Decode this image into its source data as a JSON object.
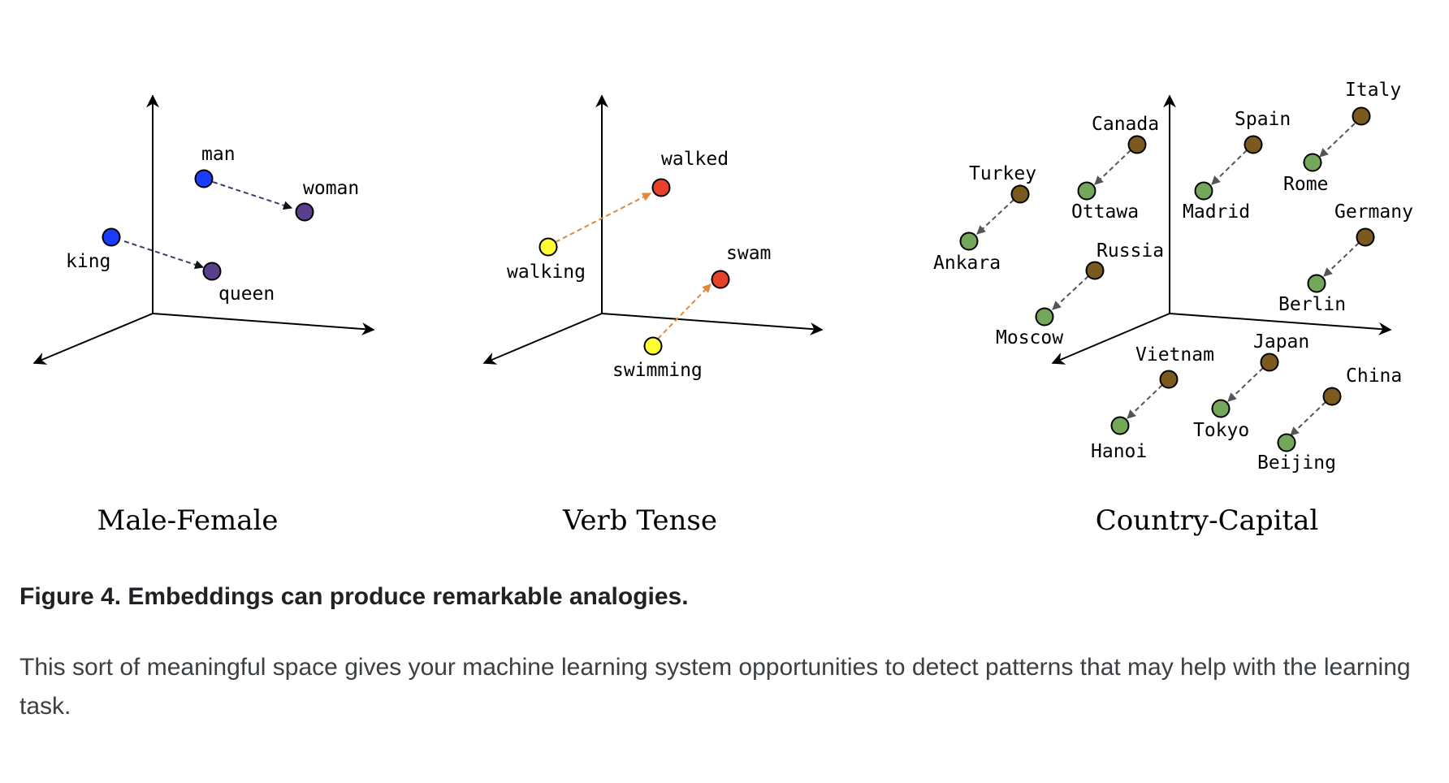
{
  "panels": [
    {
      "title": "Male-Female",
      "points": [
        {
          "label": "man",
          "color": "#1a3cff"
        },
        {
          "label": "woman",
          "color": "#5b3f8c"
        },
        {
          "label": "king",
          "color": "#1a3cff"
        },
        {
          "label": "queen",
          "color": "#5b3f8c"
        }
      ],
      "arrow_color": "#3f3a6e"
    },
    {
      "title": "Verb Tense",
      "points": [
        {
          "label": "walking",
          "color": "#ffff33"
        },
        {
          "label": "walked",
          "color": "#e8412a"
        },
        {
          "label": "swimming",
          "color": "#ffff33"
        },
        {
          "label": "swam",
          "color": "#e8412a"
        }
      ],
      "arrow_color": "#e08a3c"
    },
    {
      "title": "Country-Capital",
      "countries": [
        "Turkey",
        "Canada",
        "Spain",
        "Italy",
        "Russia",
        "Germany",
        "Vietnam",
        "Japan",
        "China"
      ],
      "capitals": [
        "Ankara",
        "Ottawa",
        "Madrid",
        "Rome",
        "Moscow",
        "Berlin",
        "Hanoi",
        "Tokyo",
        "Beijing"
      ],
      "country_color": "#7a5a1e",
      "capital_color": "#73a85a",
      "arrow_color": "#555555"
    }
  ],
  "caption": "Figure 4. Embeddings can produce remarkable analogies.",
  "body_text": "This sort of meaningful space gives your machine learning system opportunities to detect patterns that may help with the learning task."
}
